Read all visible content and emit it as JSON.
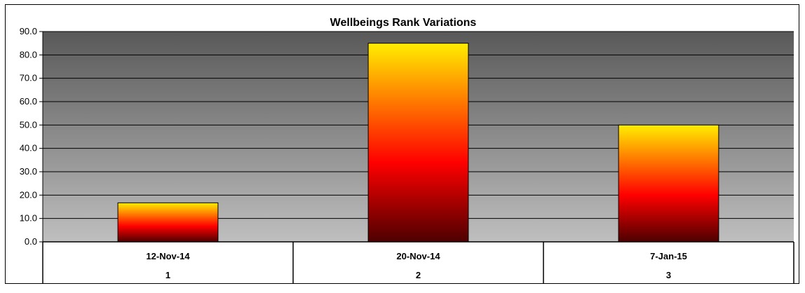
{
  "chart_data": {
    "type": "bar",
    "title": "Wellbeings Rank Variations",
    "xlabel": "",
    "ylabel": "",
    "ylim": [
      0,
      90
    ],
    "yticks": [
      "0.0",
      "10.0",
      "20.0",
      "30.0",
      "40.0",
      "50.0",
      "60.0",
      "70.0",
      "80.0",
      "90.0"
    ],
    "categories": [
      {
        "date": "12-Nov-14",
        "index": "1"
      },
      {
        "date": "20-Nov-14",
        "index": "2"
      },
      {
        "date": "7-Jan-15",
        "index": "3"
      }
    ],
    "values": [
      16.7,
      85.0,
      50.0
    ],
    "grid": true,
    "legend": "none",
    "colors": {
      "plot_top": "#595959",
      "plot_bottom": "#bfbfbf",
      "bar_top": "#ffee00",
      "bar_mid": "#ff0000",
      "bar_bottom": "#4d0000",
      "gridline": "#000000"
    }
  }
}
